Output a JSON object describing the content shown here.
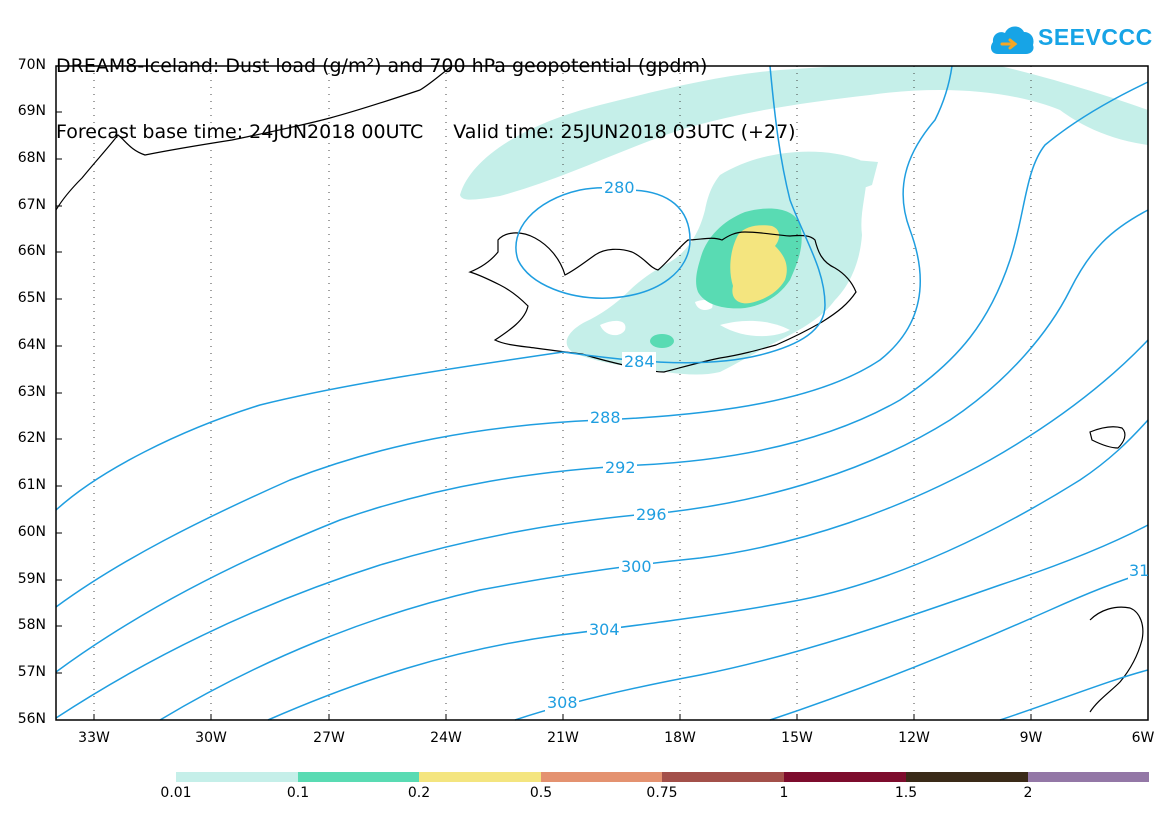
{
  "title": {
    "line1": "DREAM8-Iceland: Dust load (g/m²) and 700 hPa geopotential (gpdm)",
    "forecast_base": "Forecast base time: 24JUN2018 00UTC",
    "valid_time": "Valid time: 25JUN2018 03UTC (+27)"
  },
  "logo": {
    "text": "SEEVCCC",
    "icon": "cloud-logo-icon",
    "color": "#17a4e6"
  },
  "lat_labels": [
    "70N",
    "69N",
    "68N",
    "67N",
    "66N",
    "65N",
    "64N",
    "63N",
    "62N",
    "61N",
    "60N",
    "59N",
    "58N",
    "57N",
    "56N"
  ],
  "lon_labels": [
    "33W",
    "30W",
    "27W",
    "24W",
    "21W",
    "18W",
    "15W",
    "12W",
    "9W",
    "6W"
  ],
  "contour_labels": [
    "280",
    "284",
    "288",
    "292",
    "296",
    "300",
    "304",
    "308",
    "31"
  ],
  "legend": {
    "labels": [
      "0.01",
      "0.1",
      "0.2",
      "0.5",
      "0.75",
      "1",
      "1.5",
      "2"
    ],
    "colors": [
      "#c5efe9",
      "#59dbb3",
      "#f4e57f",
      "#e49270",
      "#a3504a",
      "#7d0c2d",
      "#3a2a18",
      "#9377a6"
    ]
  },
  "dust_colors": {
    "low": "#c5efe9",
    "mid": "#59dbb3",
    "high": "#f4e57f"
  },
  "contour_color": "#1f9ee0"
}
